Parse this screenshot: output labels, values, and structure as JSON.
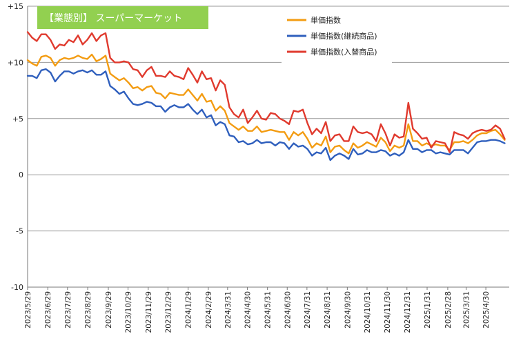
{
  "chart_data": {
    "type": "line",
    "title": "【業態別】 スーパーマーケット",
    "title_bg": "#92d050",
    "ylim": [
      -10,
      15
    ],
    "yticks": [
      {
        "value": 15,
        "label": "+15"
      },
      {
        "value": 10,
        "label": "+10"
      },
      {
        "value": 5,
        "label": "+5"
      },
      {
        "value": 0,
        "label": "0"
      },
      {
        "value": -5,
        "label": "-5"
      },
      {
        "value": -10,
        "label": "-10"
      }
    ],
    "xlim": [
      0,
      105
    ],
    "xticks": [
      {
        "pos": 0,
        "label": "2023/5/29"
      },
      {
        "pos": 4.4,
        "label": "2023/6/29"
      },
      {
        "pos": 8.7,
        "label": "2023/7/29"
      },
      {
        "pos": 13.1,
        "label": "2023/8/29"
      },
      {
        "pos": 17.6,
        "label": "2023/9/29"
      },
      {
        "pos": 21.9,
        "label": "2023/10/29"
      },
      {
        "pos": 26.3,
        "label": "2023/11/29"
      },
      {
        "pos": 30.6,
        "label": "2023/12/29"
      },
      {
        "pos": 35.0,
        "label": "2024/1/29"
      },
      {
        "pos": 39.4,
        "label": "2024/2/29"
      },
      {
        "pos": 43.6,
        "label": "2024/3/31"
      },
      {
        "pos": 47.9,
        "label": "2024/4/30"
      },
      {
        "pos": 52.3,
        "label": "2024/5/31"
      },
      {
        "pos": 56.6,
        "label": "2024/6/30"
      },
      {
        "pos": 60.9,
        "label": "2024/7/31"
      },
      {
        "pos": 65.3,
        "label": "2024/8/31"
      },
      {
        "pos": 69.7,
        "label": "2024/9/30"
      },
      {
        "pos": 74.0,
        "label": "2024/10/31"
      },
      {
        "pos": 78.4,
        "label": "2024/11/30"
      },
      {
        "pos": 82.7,
        "label": "2024/12/31"
      },
      {
        "pos": 87.1,
        "label": "2025/1/31"
      },
      {
        "pos": 91.6,
        "label": "2025/2/28"
      },
      {
        "pos": 95.6,
        "label": "2025/3/31"
      },
      {
        "pos": 99.9,
        "label": "2025/4/30"
      }
    ],
    "grid": true,
    "legend": "top-right",
    "series": [
      {
        "name": "単価指数",
        "color": "#f39c12",
        "values": [
          10.2,
          9.9,
          9.7,
          10.5,
          10.6,
          10.4,
          9.7,
          10.2,
          10.4,
          10.3,
          10.4,
          10.6,
          10.4,
          10.3,
          10.7,
          10.1,
          10.3,
          10.6,
          9.0,
          8.7,
          8.4,
          8.6,
          8.2,
          7.7,
          7.8,
          7.5,
          7.8,
          7.9,
          7.3,
          7.2,
          6.8,
          7.3,
          7.2,
          7.1,
          7.1,
          7.6,
          7.1,
          6.6,
          7.2,
          6.5,
          6.6,
          5.7,
          6.1,
          5.7,
          4.6,
          4.3,
          4.0,
          4.3,
          3.9,
          3.9,
          4.3,
          3.8,
          3.9,
          4.0,
          3.9,
          3.8,
          3.8,
          3.1,
          3.8,
          3.5,
          3.8,
          3.2,
          2.4,
          2.8,
          2.6,
          3.4,
          2.0,
          2.5,
          2.6,
          2.2,
          1.9,
          2.8,
          2.4,
          2.6,
          2.9,
          2.7,
          2.5,
          3.3,
          2.9,
          2.1,
          2.6,
          2.4,
          2.6,
          4.5,
          3.0,
          3.0,
          2.6,
          2.8,
          2.6,
          2.7,
          2.6,
          2.6,
          2.2,
          2.9,
          2.9,
          3.0,
          2.8,
          3.1,
          3.5,
          3.7,
          3.7,
          3.9,
          4.0,
          3.6,
          3.1
        ]
      },
      {
        "name": "単価指数(継続商品)",
        "color": "#2f5fbd",
        "values": [
          8.8,
          8.8,
          8.6,
          9.3,
          9.4,
          9.1,
          8.3,
          8.8,
          9.2,
          9.2,
          9.0,
          9.2,
          9.3,
          9.1,
          9.3,
          8.9,
          8.9,
          9.2,
          7.9,
          7.6,
          7.2,
          7.4,
          6.8,
          6.3,
          6.2,
          6.3,
          6.5,
          6.4,
          6.1,
          6.1,
          5.6,
          6.0,
          6.2,
          6.0,
          6.0,
          6.3,
          5.8,
          5.4,
          5.8,
          5.1,
          5.3,
          4.4,
          4.7,
          4.5,
          3.5,
          3.4,
          2.9,
          3.0,
          2.7,
          2.8,
          3.1,
          2.8,
          2.9,
          2.9,
          2.6,
          2.9,
          2.8,
          2.3,
          2.8,
          2.5,
          2.6,
          2.3,
          1.7,
          2.0,
          1.9,
          2.4,
          1.3,
          1.7,
          1.9,
          1.7,
          1.4,
          2.3,
          1.8,
          1.9,
          2.2,
          2.0,
          2.0,
          2.2,
          2.1,
          1.7,
          1.9,
          1.7,
          2.0,
          3.1,
          2.3,
          2.3,
          2.0,
          2.2,
          2.2,
          1.9,
          2.0,
          1.9,
          1.8,
          2.2,
          2.2,
          2.2,
          1.9,
          2.4,
          2.9,
          3.0,
          3.0,
          3.1,
          3.1,
          3.0,
          2.8
        ]
      },
      {
        "name": "単価指数(入替商品)",
        "color": "#e03a2e",
        "values": [
          12.7,
          12.2,
          11.9,
          12.5,
          12.5,
          12.0,
          11.2,
          11.6,
          11.5,
          12.0,
          11.8,
          12.4,
          11.6,
          12.0,
          12.6,
          11.9,
          12.4,
          12.6,
          10.4,
          10.0,
          10.0,
          10.1,
          10.0,
          9.4,
          9.3,
          8.7,
          9.3,
          9.6,
          8.8,
          8.8,
          8.7,
          9.2,
          8.8,
          8.7,
          8.5,
          9.5,
          8.9,
          8.2,
          9.2,
          8.5,
          8.6,
          7.5,
          8.4,
          8.0,
          6.0,
          5.4,
          5.1,
          5.8,
          4.6,
          5.1,
          5.7,
          5.0,
          4.9,
          5.5,
          5.4,
          5.0,
          4.8,
          4.5,
          5.7,
          5.6,
          5.8,
          4.6,
          3.6,
          4.1,
          3.7,
          4.7,
          3.0,
          3.5,
          3.6,
          3.0,
          3.0,
          4.3,
          3.8,
          3.7,
          3.8,
          3.6,
          3.0,
          4.5,
          3.7,
          2.6,
          3.6,
          3.3,
          3.4,
          6.4,
          4.1,
          3.7,
          3.2,
          3.3,
          2.4,
          3.0,
          2.9,
          2.8,
          2.0,
          3.8,
          3.6,
          3.5,
          3.2,
          3.7,
          3.9,
          4.0,
          3.9,
          4.0,
          4.4,
          4.1,
          3.2
        ]
      }
    ]
  }
}
